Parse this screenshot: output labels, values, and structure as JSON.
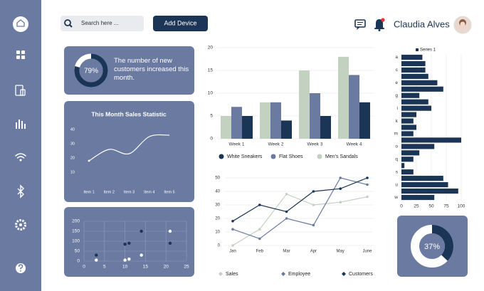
{
  "header": {
    "search_placeholder": "Search here ...",
    "button": "Add Device",
    "user_name": "Claudia Alves"
  },
  "chart_data": [
    {
      "type": "donut",
      "values": [
        79
      ],
      "value_labels": [
        "79%"
      ],
      "color": "#1b3556",
      "annotation": "The number of new customers increased this month."
    },
    {
      "type": "line",
      "title": "This Month Sales Statistic",
      "categories": [
        "Item 1",
        "Item 2",
        "Item 3",
        "Item 4",
        "Item 5"
      ],
      "values": [
        18,
        26,
        23,
        35,
        36
      ],
      "color": "#ffffff",
      "ylim": [
        5,
        45
      ],
      "yticks": [
        10,
        20,
        30,
        40
      ]
    },
    {
      "type": "scatter",
      "series": [
        {
          "color": "#1b3556",
          "x": [
            3,
            10,
            11,
            14,
            21
          ],
          "values": [
            30,
            85,
            90,
            150,
            90
          ]
        },
        {
          "color": "#ffffff",
          "x": [
            3,
            10,
            11,
            14,
            21
          ],
          "values": [
            5,
            5,
            10,
            30,
            150
          ]
        }
      ],
      "xlim": [
        0,
        25
      ],
      "xticks": [
        0,
        5,
        10,
        15,
        20,
        25
      ],
      "ylim": [
        0,
        200
      ],
      "yticks": [
        0,
        50,
        100,
        150,
        200
      ],
      "grid": true
    },
    {
      "type": "bar",
      "categories": [
        "Week 1",
        "Week 2",
        "Week 3",
        "Week 4"
      ],
      "series": [
        {
          "name": "White Sneakers",
          "color": "#1b3556",
          "values": [
            5,
            4,
            5,
            8
          ]
        },
        {
          "name": "Flat Shoes",
          "color": "#6b7aa1",
          "values": [
            7,
            8,
            10,
            14
          ]
        },
        {
          "name": "Men's Sandals",
          "color": "#c3d1c0",
          "values": [
            5,
            8,
            15,
            18
          ]
        }
      ],
      "ylim": [
        0,
        20
      ],
      "yticks": [
        0,
        5,
        10,
        15,
        20
      ],
      "grid": true
    },
    {
      "type": "line",
      "categories": [
        "Jan",
        "Feb",
        "Mar",
        "Apr",
        "May",
        "June"
      ],
      "series": [
        {
          "name": "Sales",
          "color": "#c3d1c0",
          "values": [
            0,
            12,
            38,
            30,
            32,
            36
          ]
        },
        {
          "name": "Employee",
          "color": "#6b7aa1",
          "values": [
            12,
            5,
            20,
            15,
            50,
            45
          ]
        },
        {
          "name": "Customers",
          "color": "#1b3556",
          "values": [
            18,
            30,
            25,
            40,
            42,
            50
          ]
        }
      ],
      "ylim": [
        0,
        50
      ],
      "yticks": [
        0,
        10,
        20,
        30,
        40,
        50
      ],
      "grid": true
    },
    {
      "type": "hbar",
      "categories": [
        "a",
        null,
        "c",
        null,
        "e",
        null,
        "g",
        null,
        "i",
        null,
        "k",
        null,
        "m",
        null,
        "o",
        null,
        "q",
        null,
        "s",
        null,
        "u",
        null,
        "w"
      ],
      "series": [
        {
          "name": "Series 1",
          "color": "#1b3556",
          "values": [
            35,
            40,
            40,
            45,
            60,
            70,
            30,
            45,
            50,
            25,
            20,
            25,
            20,
            100,
            55,
            30,
            20,
            5,
            20,
            70,
            78,
            95,
            55
          ]
        }
      ],
      "xlim": [
        0,
        100
      ],
      "xticks": [
        0,
        25,
        50,
        75,
        100
      ],
      "grid": true
    },
    {
      "type": "donut",
      "values": [
        37
      ],
      "value_labels": [
        "37%"
      ],
      "color": "#1b3556"
    }
  ]
}
